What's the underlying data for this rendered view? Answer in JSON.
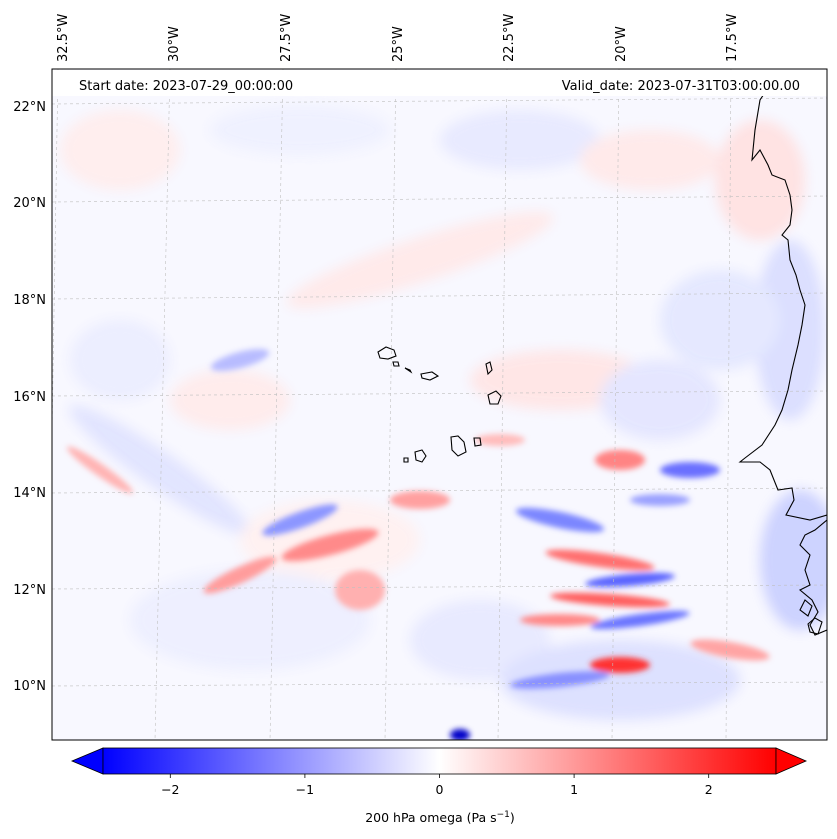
{
  "header": {
    "start_date": "Start date: 2023-07-29_00:00:00",
    "valid_date": "Valid_date: 2023-07-31T03:00:00.00"
  },
  "map": {
    "lon_labels": [
      "32.5°W",
      "30°W",
      "27.5°W",
      "25°W",
      "22.5°W",
      "20°W",
      "17.5°W"
    ],
    "lat_labels": [
      "22°N",
      "20°N",
      "18°N",
      "16°N",
      "14°N",
      "12°N",
      "10°N"
    ],
    "lon_range": [
      -32.5,
      -15.0
    ],
    "lat_range": [
      8.8,
      22.8
    ],
    "grid": true
  },
  "colorbar": {
    "ticks": [
      {
        "value": -2,
        "label": "−2"
      },
      {
        "value": -1,
        "label": "−1"
      },
      {
        "value": 0,
        "label": "0"
      },
      {
        "value": 1,
        "label": "1"
      },
      {
        "value": 2,
        "label": "2"
      }
    ],
    "range": [
      -2.5,
      2.5
    ],
    "extend": "both",
    "label_prefix": "200 hPa omega (Pa s",
    "label_sup": "−1",
    "label_suffix": ")"
  },
  "colors": {
    "negative": "#0000ff",
    "zero": "#ffffff",
    "positive": "#ff0000"
  }
}
